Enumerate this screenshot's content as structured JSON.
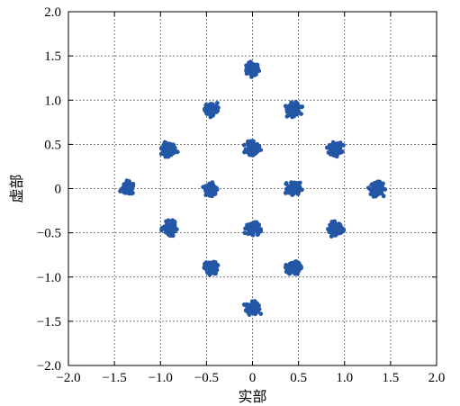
{
  "chart_data": {
    "type": "scatter",
    "title": "",
    "xlabel": "实部",
    "ylabel": "虚部",
    "xlim": [
      -2.0,
      2.0
    ],
    "ylim": [
      -2.0,
      2.0
    ],
    "xticks": [
      "−2.0",
      "−1.5",
      "−1.0",
      "−0.5",
      "0",
      "0.5",
      "1.0",
      "1.5",
      "2.0"
    ],
    "yticks": [
      "2.0",
      "1.5",
      "1.0",
      "0.5",
      "0",
      "−0.5",
      "−1.0",
      "−1.5",
      "−2.0"
    ],
    "xtick_values": [
      -2.0,
      -1.5,
      -1.0,
      -0.5,
      0,
      0.5,
      1.0,
      1.5,
      2.0
    ],
    "ytick_values": [
      2.0,
      1.5,
      1.0,
      0.5,
      0,
      -0.5,
      -1.0,
      -1.5,
      -2.0
    ],
    "grid": true,
    "marker_color": "#2456a6",
    "series": [
      {
        "cluster_centers": [
          [
            0,
            1.35
          ],
          [
            0,
            -1.35
          ],
          [
            1.35,
            0
          ],
          [
            -1.35,
            0
          ],
          [
            0.45,
            0.9
          ],
          [
            -0.45,
            0.9
          ],
          [
            0.45,
            -0.9
          ],
          [
            -0.45,
            -0.9
          ],
          [
            0.9,
            0.45
          ],
          [
            -0.9,
            0.45
          ],
          [
            0.9,
            -0.45
          ],
          [
            -0.9,
            -0.45
          ],
          [
            0,
            0.45
          ],
          [
            0,
            -0.45
          ],
          [
            0.45,
            0
          ],
          [
            -0.45,
            0
          ]
        ],
        "cluster_spread": 0.06
      }
    ]
  }
}
